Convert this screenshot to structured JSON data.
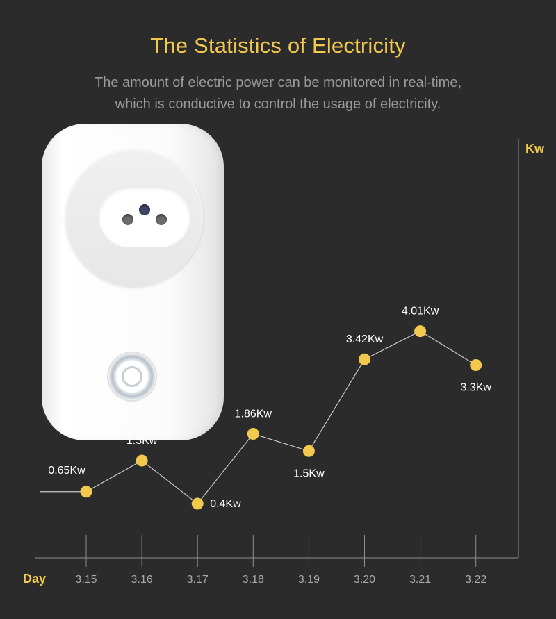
{
  "header": {
    "title": "The Statistics of Electricity",
    "subtitle_lines": [
      "The amount of electric power can be monitored in real-time,",
      "which is conductive to control the usage of electricity."
    ]
  },
  "colors": {
    "background": "#2b2b2b",
    "accent": "#f2c94c",
    "line": "#c9c9c9",
    "axis": "#8e8e8e"
  },
  "chart_data": {
    "type": "line",
    "xlabel": "Day",
    "ylabel": "Kw",
    "categories": [
      "3.15",
      "3.16",
      "3.17",
      "3.18",
      "3.19",
      "3.20",
      "3.21",
      "3.22"
    ],
    "values": [
      0.65,
      1.3,
      0.4,
      1.86,
      1.5,
      3.42,
      4.01,
      3.3
    ],
    "data_labels": [
      "0.65Kw",
      "1.3Kw",
      "0.4Kw",
      "1.86Kw",
      "1.5Kw",
      "3.42Kw",
      "4.01Kw",
      "3.3Kw"
    ],
    "grid": false,
    "legend": "none"
  }
}
